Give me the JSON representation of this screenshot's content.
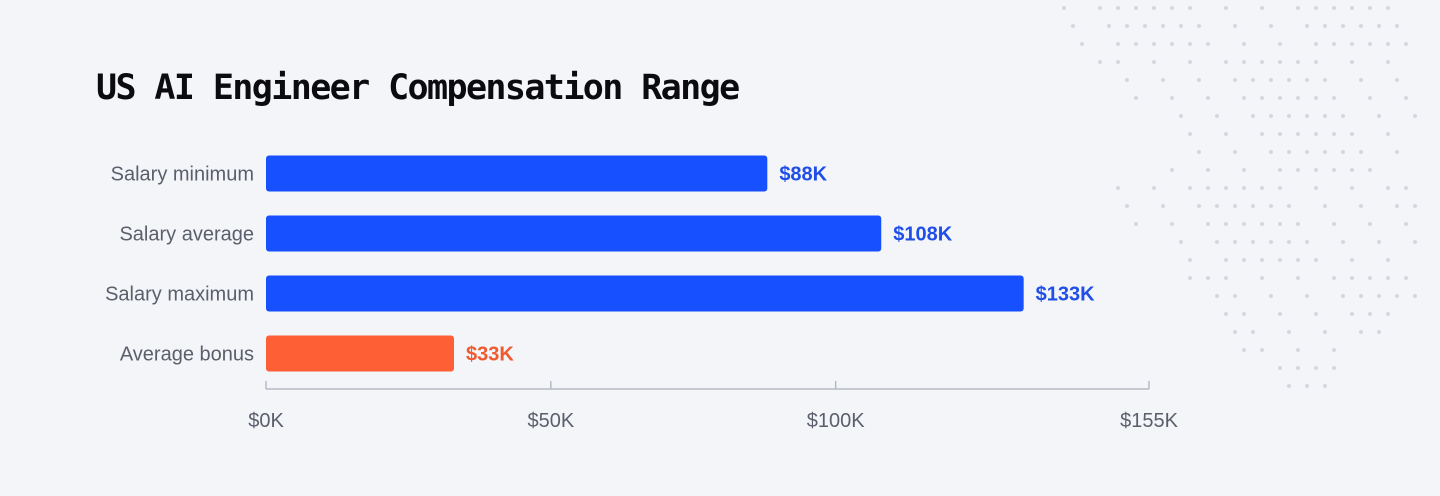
{
  "chart_data": {
    "type": "bar",
    "orientation": "horizontal",
    "title": "US AI Engineer Compensation Range",
    "categories": [
      "Salary minimum",
      "Salary average",
      "Salary maximum",
      "Average bonus"
    ],
    "values": [
      88,
      108,
      133,
      33
    ],
    "value_labels": [
      "$88K",
      "$108K",
      "$133K",
      "$33K"
    ],
    "bar_colors": [
      "#1650ff",
      "#1650ff",
      "#1650ff",
      "#ff5f35"
    ],
    "label_colors": [
      "#1f4ee8",
      "#1f4ee8",
      "#1f4ee8",
      "#f05a2e"
    ],
    "xlim": [
      0,
      155
    ],
    "x_ticks": [
      0,
      50,
      100,
      155
    ],
    "x_tick_labels": [
      "$0K",
      "$50K",
      "$100K",
      "$155K"
    ],
    "xlabel": "",
    "ylabel": "",
    "grid": false,
    "legend": "none"
  },
  "colors": {
    "background": "#f3f5f9",
    "axis": "#b7bac6",
    "decorative_dots": "#d4d7df"
  }
}
